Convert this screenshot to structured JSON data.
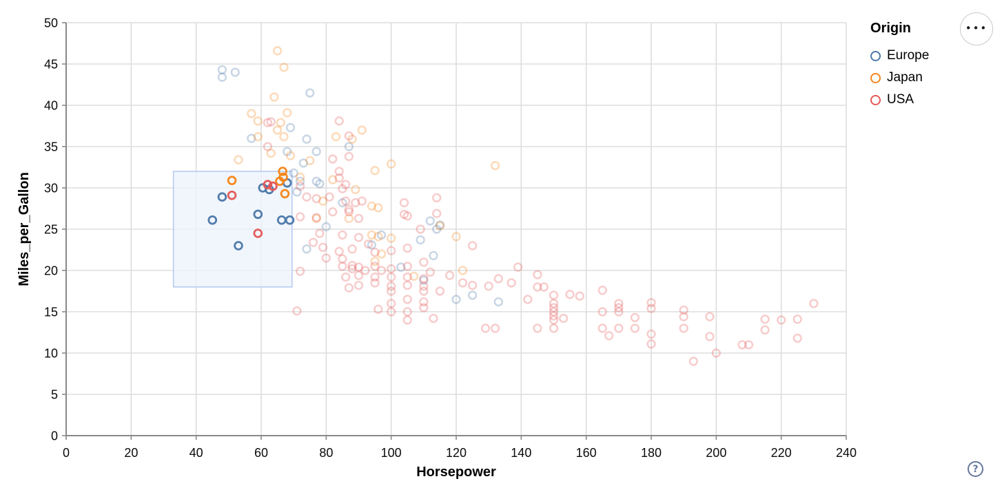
{
  "controls": {
    "menu_icon": "•••",
    "help_label": "?"
  },
  "chart_data": {
    "type": "scatter",
    "title": "",
    "xlabel": "Horsepower",
    "ylabel": "Miles_per_Gallon",
    "xlim": [
      0,
      240
    ],
    "ylim": [
      0,
      50
    ],
    "x_ticks": [
      0,
      20,
      40,
      60,
      80,
      100,
      120,
      140,
      160,
      180,
      200,
      220,
      240
    ],
    "y_ticks": [
      0,
      5,
      10,
      15,
      20,
      25,
      30,
      35,
      40,
      45,
      50
    ],
    "grid": true,
    "mark": {
      "shape": "open-circle",
      "radius": 5.4,
      "stroke_width": 2.5,
      "faded_opacity": 0.3
    },
    "colors": {
      "grid": "#dddddd",
      "axis": "#888888",
      "brush_fill": "#eef4fc",
      "brush_stroke": "#b7cbee"
    },
    "selection_brush": {
      "x": [
        33,
        69.5
      ],
      "y": [
        18,
        32
      ]
    },
    "legend": {
      "title": "Origin",
      "position": "top-right",
      "entries": [
        {
          "label": "Europe",
          "color": "#4c78a8"
        },
        {
          "label": "Japan",
          "color": "#f58518"
        },
        {
          "label": "USA",
          "color": "#e45756"
        }
      ]
    },
    "series": [
      {
        "name": "Europe",
        "color": "#4c78a8",
        "selected": [
          [
            45,
            26.1
          ],
          [
            48,
            28.9
          ],
          [
            53,
            23
          ],
          [
            59,
            26.8
          ],
          [
            60.5,
            30
          ],
          [
            62.5,
            29.8
          ],
          [
            68,
            30.6
          ],
          [
            66.3,
            26.1
          ],
          [
            68.8,
            26.1
          ]
        ],
        "points": [
          [
            48,
            43.4
          ],
          [
            48,
            44.3
          ],
          [
            52,
            44
          ],
          [
            75,
            41.5
          ],
          [
            69,
            37.3
          ],
          [
            57,
            36
          ],
          [
            74,
            35.9
          ],
          [
            87,
            35
          ],
          [
            68,
            34.4
          ],
          [
            77,
            34.4
          ],
          [
            73,
            33
          ],
          [
            70,
            31.8
          ],
          [
            72,
            30.8
          ],
          [
            77,
            30.8
          ],
          [
            78,
            30.5
          ],
          [
            71,
            29.5
          ],
          [
            85,
            28.2
          ],
          [
            112,
            26
          ],
          [
            115,
            25.5
          ],
          [
            80,
            25.3
          ],
          [
            114,
            25
          ],
          [
            97,
            24.3
          ],
          [
            109,
            23.7
          ],
          [
            94,
            23.1
          ],
          [
            74,
            22.6
          ],
          [
            103,
            20.4
          ],
          [
            113,
            21.8
          ],
          [
            110,
            18.8
          ],
          [
            125,
            17
          ],
          [
            120,
            16.5
          ],
          [
            133,
            16.2
          ]
        ]
      },
      {
        "name": "Japan",
        "color": "#f58518",
        "selected": [
          [
            51,
            30.9
          ],
          [
            65.7,
            30.8
          ],
          [
            66.6,
            32
          ],
          [
            66.8,
            31.3
          ],
          [
            67.3,
            29.3
          ]
        ],
        "points": [
          [
            65,
            46.6
          ],
          [
            67,
            44.6
          ],
          [
            64,
            41
          ],
          [
            68,
            39.1
          ],
          [
            57,
            39
          ],
          [
            59,
            38.1
          ],
          [
            66,
            37.9
          ],
          [
            65,
            37
          ],
          [
            91,
            37
          ],
          [
            67,
            36.2
          ],
          [
            59,
            36.2
          ],
          [
            83,
            36.2
          ],
          [
            88,
            35.9
          ],
          [
            63,
            34.2
          ],
          [
            69,
            33.9
          ],
          [
            53,
            33.4
          ],
          [
            75,
            33.3
          ],
          [
            100,
            32.9
          ],
          [
            132,
            32.7
          ],
          [
            95,
            32.1
          ],
          [
            72,
            31.3
          ],
          [
            82,
            31
          ],
          [
            89,
            29.8
          ],
          [
            79,
            28.4
          ],
          [
            94,
            27.8
          ],
          [
            96,
            27.6
          ],
          [
            77,
            26.3
          ],
          [
            87,
            26.3
          ],
          [
            94,
            24.3
          ],
          [
            96,
            24.1
          ],
          [
            100,
            23.9
          ],
          [
            120,
            24.1
          ],
          [
            115,
            25.4
          ],
          [
            122,
            20
          ],
          [
            97,
            22
          ],
          [
            95,
            21.1
          ],
          [
            107,
            19.3
          ]
        ]
      },
      {
        "name": "USA",
        "color": "#e45756",
        "selected": [
          [
            51,
            29.1
          ],
          [
            62,
            30.4
          ],
          [
            63.6,
            30.2
          ],
          [
            59,
            24.5
          ]
        ],
        "points": [
          [
            63,
            38
          ],
          [
            62,
            37.9
          ],
          [
            84,
            38.1
          ],
          [
            87,
            36.3
          ],
          [
            62,
            35
          ],
          [
            87,
            33.8
          ],
          [
            82,
            33.5
          ],
          [
            84,
            32
          ],
          [
            84,
            31.2
          ],
          [
            86,
            30.4
          ],
          [
            72,
            30.2
          ],
          [
            85,
            29.9
          ],
          [
            74,
            28.9
          ],
          [
            77,
            28.7
          ],
          [
            81,
            28.9
          ],
          [
            86,
            28.4
          ],
          [
            89,
            28.2
          ],
          [
            91,
            28.4
          ],
          [
            104,
            28.2
          ],
          [
            104,
            26.8
          ],
          [
            114,
            28.8
          ],
          [
            114,
            26.9
          ],
          [
            72,
            26.5
          ],
          [
            77,
            26.4
          ],
          [
            82,
            27.1
          ],
          [
            87,
            27.4
          ],
          [
            87,
            27.1
          ],
          [
            90,
            26.3
          ],
          [
            105,
            26.6
          ],
          [
            109,
            25
          ],
          [
            76,
            23.4
          ],
          [
            78,
            24.5
          ],
          [
            79,
            22.8
          ],
          [
            85,
            24.3
          ],
          [
            90,
            24
          ],
          [
            93,
            23.2
          ],
          [
            95,
            22.2
          ],
          [
            100,
            22.4
          ],
          [
            105,
            22.7
          ],
          [
            88,
            22.6
          ],
          [
            84,
            22.3
          ],
          [
            80,
            21.5
          ],
          [
            85,
            21.4
          ],
          [
            125,
            23
          ],
          [
            72,
            19.9
          ],
          [
            85,
            20.5
          ],
          [
            88,
            20.6
          ],
          [
            88,
            20.2
          ],
          [
            90,
            20.4
          ],
          [
            90,
            19.4
          ],
          [
            92,
            20
          ],
          [
            95,
            20.5
          ],
          [
            95,
            19.2
          ],
          [
            97,
            20
          ],
          [
            100,
            20.2
          ],
          [
            100,
            19.2
          ],
          [
            105,
            20.5
          ],
          [
            105,
            19.2
          ],
          [
            110,
            21
          ],
          [
            110,
            19
          ],
          [
            86,
            19.2
          ],
          [
            112,
            19.8
          ],
          [
            118,
            19.4
          ],
          [
            139,
            20.4
          ],
          [
            87,
            17.9
          ],
          [
            90,
            18.2
          ],
          [
            95,
            18.5
          ],
          [
            100,
            18.1
          ],
          [
            100,
            17.5
          ],
          [
            105,
            18.2
          ],
          [
            110,
            18.1
          ],
          [
            110,
            17.5
          ],
          [
            115,
            17.5
          ],
          [
            122,
            18.5
          ],
          [
            125,
            18.2
          ],
          [
            130,
            18.1
          ],
          [
            133,
            19
          ],
          [
            137,
            18.5
          ],
          [
            145,
            19.5
          ],
          [
            145,
            18
          ],
          [
            147,
            18
          ],
          [
            155,
            17.1
          ],
          [
            165,
            17.6
          ],
          [
            100,
            16
          ],
          [
            105,
            16.5
          ],
          [
            110,
            16.2
          ],
          [
            110,
            15.5
          ],
          [
            105,
            15
          ],
          [
            105,
            14
          ],
          [
            100,
            15
          ],
          [
            113,
            14.2
          ],
          [
            96,
            15.3
          ],
          [
            71,
            15.1
          ],
          [
            150,
            17
          ],
          [
            150,
            16
          ],
          [
            150,
            15.5
          ],
          [
            150,
            15
          ],
          [
            150,
            14.5
          ],
          [
            150,
            14
          ],
          [
            150,
            13
          ],
          [
            153,
            14.2
          ],
          [
            158,
            16.9
          ],
          [
            142,
            16.5
          ],
          [
            145,
            13
          ],
          [
            129,
            13
          ],
          [
            132,
            13
          ],
          [
            165,
            15
          ],
          [
            165,
            13
          ],
          [
            170,
            16
          ],
          [
            170,
            15.5
          ],
          [
            170,
            15
          ],
          [
            167,
            12.1
          ],
          [
            170,
            13
          ],
          [
            175,
            14.3
          ],
          [
            175,
            13
          ],
          [
            180,
            16.1
          ],
          [
            180,
            15.4
          ],
          [
            180,
            12.3
          ],
          [
            180,
            11.1
          ],
          [
            190,
            15.2
          ],
          [
            190,
            14.4
          ],
          [
            190,
            13
          ],
          [
            198,
            14.4
          ],
          [
            198,
            12
          ],
          [
            200,
            10
          ],
          [
            193,
            9
          ],
          [
            208,
            11
          ],
          [
            210,
            11
          ],
          [
            215,
            14.1
          ],
          [
            215,
            12.8
          ],
          [
            220,
            14
          ],
          [
            225,
            14.1
          ],
          [
            225,
            11.8
          ],
          [
            230,
            16
          ]
        ]
      }
    ]
  }
}
